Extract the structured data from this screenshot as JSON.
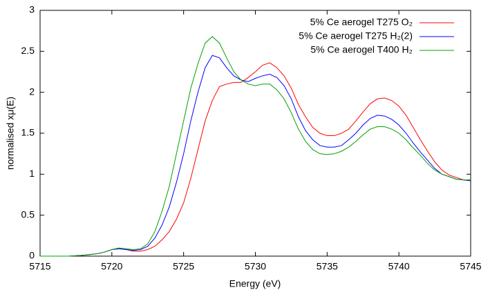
{
  "chart_data": {
    "type": "line",
    "xlabel": "Energy (eV)",
    "ylabel": "normalised xμ(E)",
    "x": [
      5715,
      5715.5,
      5716,
      5716.5,
      5717,
      5717.5,
      5718,
      5718.5,
      5719,
      5719.5,
      5720,
      5720.5,
      5721,
      5721.5,
      5722,
      5722.5,
      5723,
      5723.5,
      5724,
      5724.5,
      5725,
      5725.5,
      5726,
      5726.5,
      5727,
      5727.5,
      5728,
      5728.5,
      5729,
      5729.5,
      5730,
      5730.5,
      5731,
      5731.5,
      5732,
      5732.5,
      5733,
      5733.5,
      5734,
      5734.5,
      5735,
      5735.5,
      5736,
      5736.5,
      5737,
      5737.5,
      5738,
      5738.5,
      5739,
      5739.5,
      5740,
      5740.5,
      5741,
      5741.5,
      5742,
      5742.5,
      5743,
      5743.5,
      5744,
      5744.5,
      5745
    ],
    "series": [
      {
        "name": "5% Ce aerogel T275 O₂",
        "color": "#ff0000",
        "values": [
          0,
          0,
          0,
          0,
          0,
          0.005,
          0.01,
          0.02,
          0.03,
          0.05,
          0.08,
          0.09,
          0.08,
          0.06,
          0.06,
          0.08,
          0.12,
          0.2,
          0.3,
          0.45,
          0.65,
          0.95,
          1.3,
          1.65,
          1.9,
          2.07,
          2.1,
          2.12,
          2.12,
          2.18,
          2.25,
          2.33,
          2.36,
          2.3,
          2.2,
          2.05,
          1.85,
          1.7,
          1.57,
          1.5,
          1.47,
          1.47,
          1.5,
          1.55,
          1.65,
          1.76,
          1.86,
          1.92,
          1.93,
          1.9,
          1.83,
          1.72,
          1.57,
          1.42,
          1.28,
          1.15,
          1.05,
          0.99,
          0.96,
          0.93,
          0.93
        ]
      },
      {
        "name": "5% Ce aerogel T275 H₂(2)",
        "color": "#0000ff",
        "values": [
          0,
          0,
          0,
          0,
          0,
          0.005,
          0.01,
          0.02,
          0.03,
          0.05,
          0.08,
          0.09,
          0.08,
          0.07,
          0.08,
          0.12,
          0.22,
          0.38,
          0.6,
          0.9,
          1.25,
          1.65,
          2.0,
          2.3,
          2.45,
          2.42,
          2.3,
          2.2,
          2.15,
          2.13,
          2.17,
          2.2,
          2.22,
          2.18,
          2.08,
          1.92,
          1.7,
          1.53,
          1.42,
          1.35,
          1.33,
          1.33,
          1.35,
          1.42,
          1.5,
          1.6,
          1.68,
          1.72,
          1.71,
          1.67,
          1.6,
          1.5,
          1.38,
          1.27,
          1.17,
          1.07,
          1.0,
          0.97,
          0.94,
          0.93,
          0.92
        ]
      },
      {
        "name": "5% Ce aerogel T400 H₂",
        "color": "#00a000",
        "values": [
          0,
          0,
          0,
          0,
          0,
          0.005,
          0.01,
          0.02,
          0.03,
          0.05,
          0.08,
          0.1,
          0.09,
          0.08,
          0.09,
          0.15,
          0.3,
          0.55,
          0.85,
          1.25,
          1.65,
          2.05,
          2.35,
          2.6,
          2.68,
          2.6,
          2.42,
          2.25,
          2.15,
          2.1,
          2.08,
          2.1,
          2.1,
          2.03,
          1.92,
          1.75,
          1.55,
          1.4,
          1.3,
          1.25,
          1.24,
          1.25,
          1.28,
          1.33,
          1.4,
          1.48,
          1.55,
          1.58,
          1.58,
          1.55,
          1.5,
          1.42,
          1.32,
          1.23,
          1.13,
          1.05,
          1.0,
          0.97,
          0.94,
          0.93,
          0.93
        ]
      }
    ],
    "xlim": [
      5715,
      5745
    ],
    "xticks": [
      5715,
      5720,
      5725,
      5730,
      5735,
      5740,
      5745
    ],
    "ylim": [
      0,
      3
    ],
    "yticks": [
      0,
      0.5,
      1,
      1.5,
      2,
      2.5,
      3
    ],
    "grid": false,
    "legend": "top-right"
  }
}
